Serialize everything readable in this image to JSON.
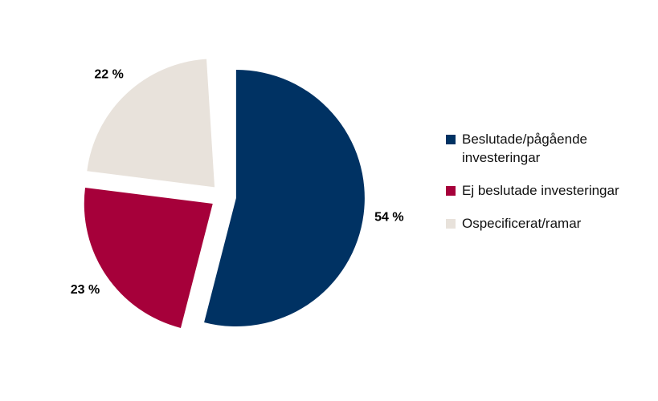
{
  "chart_data": {
    "type": "pie",
    "categories": [
      "Beslutade/pågående investeringar",
      "Ej beslutade investeringar",
      "Ospecificerat/ramar"
    ],
    "values": [
      54,
      23,
      22
    ],
    "value_labels": [
      "54 %",
      "23 %",
      "22 %"
    ],
    "colors": [
      "#003263",
      "#a6003a",
      "#e8e2db"
    ],
    "legend": "right"
  }
}
